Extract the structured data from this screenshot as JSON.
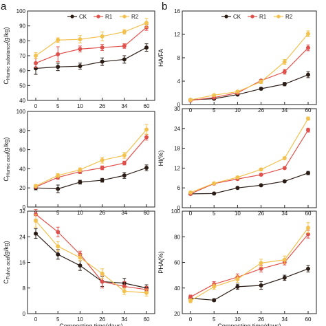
{
  "colors": {
    "CK": "#2b1d16",
    "R1": "#e0504a",
    "R2": "#f2c14e",
    "axis": "#222222"
  },
  "chart_data": [
    {
      "type": "line",
      "panel_letter": "a",
      "ylabel_parts": [
        "C",
        "Humic substance",
        "(g/kg)"
      ],
      "x": [
        0,
        5,
        10,
        26,
        34,
        60
      ],
      "xticks": [
        "0",
        "5",
        "10",
        "26",
        "34",
        "60"
      ],
      "ylim": [
        40,
        100
      ],
      "yticks": [
        40,
        50,
        60,
        70,
        80,
        90,
        100
      ],
      "legend": "top",
      "series": [
        {
          "name": "CK",
          "values": [
            61.5,
            62.5,
            63,
            66,
            67.5,
            75.5
          ],
          "errors": [
            4,
            2.5,
            2,
            2.5,
            2.5,
            2.5
          ]
        },
        {
          "name": "R1",
          "values": [
            65,
            71,
            74.5,
            75.5,
            76.5,
            89
          ],
          "errors": [
            3,
            5,
            2,
            2,
            1.5,
            2
          ]
        },
        {
          "name": "R2",
          "values": [
            70,
            80.5,
            81,
            83,
            86,
            92
          ],
          "errors": [
            2,
            1.5,
            2.5,
            3,
            1.5,
            3
          ]
        }
      ]
    },
    {
      "type": "line",
      "ylabel_parts": [
        "C",
        "Humic acid",
        "(g/kg)"
      ],
      "x": [
        0,
        5,
        10,
        26,
        34,
        60
      ],
      "xticks": [
        "0",
        "5",
        "10",
        "26",
        "34",
        "60"
      ],
      "ylim": [
        0,
        100
      ],
      "yticks": [
        0,
        20,
        40,
        60,
        80,
        100
      ],
      "series": [
        {
          "name": "CK",
          "values": [
            20,
            19,
            26,
            28,
            33,
            41
          ],
          "errors": [
            2,
            4,
            2,
            2,
            3,
            3
          ]
        },
        {
          "name": "R1",
          "values": [
            21,
            31,
            37,
            41,
            46,
            73
          ],
          "errors": [
            1.5,
            2,
            2,
            2,
            2,
            3
          ]
        },
        {
          "name": "R2",
          "values": [
            22,
            33,
            39,
            49,
            54,
            81
          ],
          "errors": [
            1.5,
            2,
            2,
            3,
            3,
            5
          ]
        }
      ]
    },
    {
      "type": "line",
      "ylabel_parts": [
        "C",
        "Fulvic acid",
        "(g/kg)"
      ],
      "x": [
        0,
        5,
        10,
        26,
        34,
        60
      ],
      "xticks": [
        "0",
        "5",
        "10",
        "26",
        "34",
        "60"
      ],
      "xlabel": "Composting time(days)",
      "ylim": [
        0,
        32
      ],
      "yticks": [
        0,
        8,
        16,
        24,
        32
      ],
      "series": [
        {
          "name": "CK",
          "values": [
            25,
            18.5,
            15,
            10,
            9.5,
            8
          ],
          "errors": [
            1.5,
            1.5,
            1.5,
            1.5,
            1.5,
            1
          ]
        },
        {
          "name": "R1",
          "values": [
            31,
            25.5,
            18.5,
            10,
            8.5,
            7.5
          ],
          "errors": [
            1.5,
            1.5,
            1,
            2,
            1.5,
            1
          ]
        },
        {
          "name": "R2",
          "values": [
            29,
            21,
            17.5,
            12.5,
            7,
            6.5
          ],
          "errors": [
            2,
            1.5,
            1,
            1.5,
            1,
            1
          ]
        }
      ]
    },
    {
      "type": "line",
      "panel_letter": "b",
      "ylabel_parts": [
        "HA/FA"
      ],
      "x": [
        0,
        5,
        10,
        26,
        34,
        60
      ],
      "xticks": [
        "0",
        "5",
        "10",
        "26",
        "34",
        "60"
      ],
      "ylim": [
        0,
        16
      ],
      "yticks": [
        0,
        4,
        8,
        12,
        16
      ],
      "legend": "top",
      "series": [
        {
          "name": "CK",
          "values": [
            0.8,
            1.0,
            1.7,
            2.7,
            3.5,
            5.1
          ],
          "errors": [
            0.1,
            0.1,
            0.15,
            0.2,
            0.3,
            0.5
          ]
        },
        {
          "name": "R1",
          "values": [
            0.7,
            1.2,
            2.0,
            4.1,
            5.6,
            9.7
          ],
          "errors": [
            0.1,
            0.1,
            0.2,
            0.2,
            0.4,
            0.5
          ]
        },
        {
          "name": "R2",
          "values": [
            0.8,
            1.6,
            2.2,
            3.9,
            7.3,
            12.1
          ],
          "errors": [
            0.1,
            0.15,
            0.2,
            0.3,
            0.4,
            0.5
          ]
        }
      ]
    },
    {
      "type": "line",
      "ylabel_parts": [
        "HI(%)"
      ],
      "x": [
        0,
        5,
        10,
        26,
        34,
        60
      ],
      "xticks": [
        "0",
        "5",
        "10",
        "26",
        "34",
        "60"
      ],
      "ylim": [
        0,
        30
      ],
      "yticks": [
        0,
        6,
        12,
        18,
        24,
        30
      ],
      "series": [
        {
          "name": "CK",
          "values": [
            4.2,
            4.3,
            6.0,
            6.8,
            8.0,
            10.5
          ],
          "errors": [
            0.3,
            0.3,
            0.3,
            0.3,
            0.3,
            0.5
          ]
        },
        {
          "name": "R1",
          "values": [
            4.2,
            7.3,
            8.7,
            10.0,
            12.0,
            23.5
          ],
          "errors": [
            0.3,
            0.3,
            0.3,
            0.3,
            0.3,
            0.6
          ]
        },
        {
          "name": "R2",
          "values": [
            4.6,
            7.4,
            9.2,
            11.6,
            15.0,
            27.0
          ],
          "errors": [
            0.3,
            0.3,
            0.3,
            0.4,
            0.4,
            0.5
          ]
        }
      ]
    },
    {
      "type": "line",
      "ylabel_parts": [
        "PHA(%)"
      ],
      "x": [
        0,
        5,
        10,
        26,
        34,
        60
      ],
      "xticks": [
        "0",
        "5",
        "10",
        "26",
        "34",
        "60"
      ],
      "xlabel": "Composting time(days)",
      "ylim": [
        20,
        100
      ],
      "yticks": [
        20,
        40,
        60,
        80,
        100
      ],
      "series": [
        {
          "name": "CK",
          "values": [
            32,
            30.5,
            41,
            42,
            48,
            55
          ],
          "errors": [
            1.5,
            1,
            2,
            3,
            2,
            2.5
          ]
        },
        {
          "name": "R1",
          "values": [
            33,
            43,
            48.5,
            55,
            60,
            82
          ],
          "errors": [
            1.5,
            2,
            2.5,
            2.5,
            2,
            3
          ]
        },
        {
          "name": "R2",
          "values": [
            30,
            41,
            47,
            59.5,
            62,
            87
          ],
          "errors": [
            1.5,
            2,
            2.5,
            3,
            3,
            4
          ]
        }
      ]
    }
  ]
}
